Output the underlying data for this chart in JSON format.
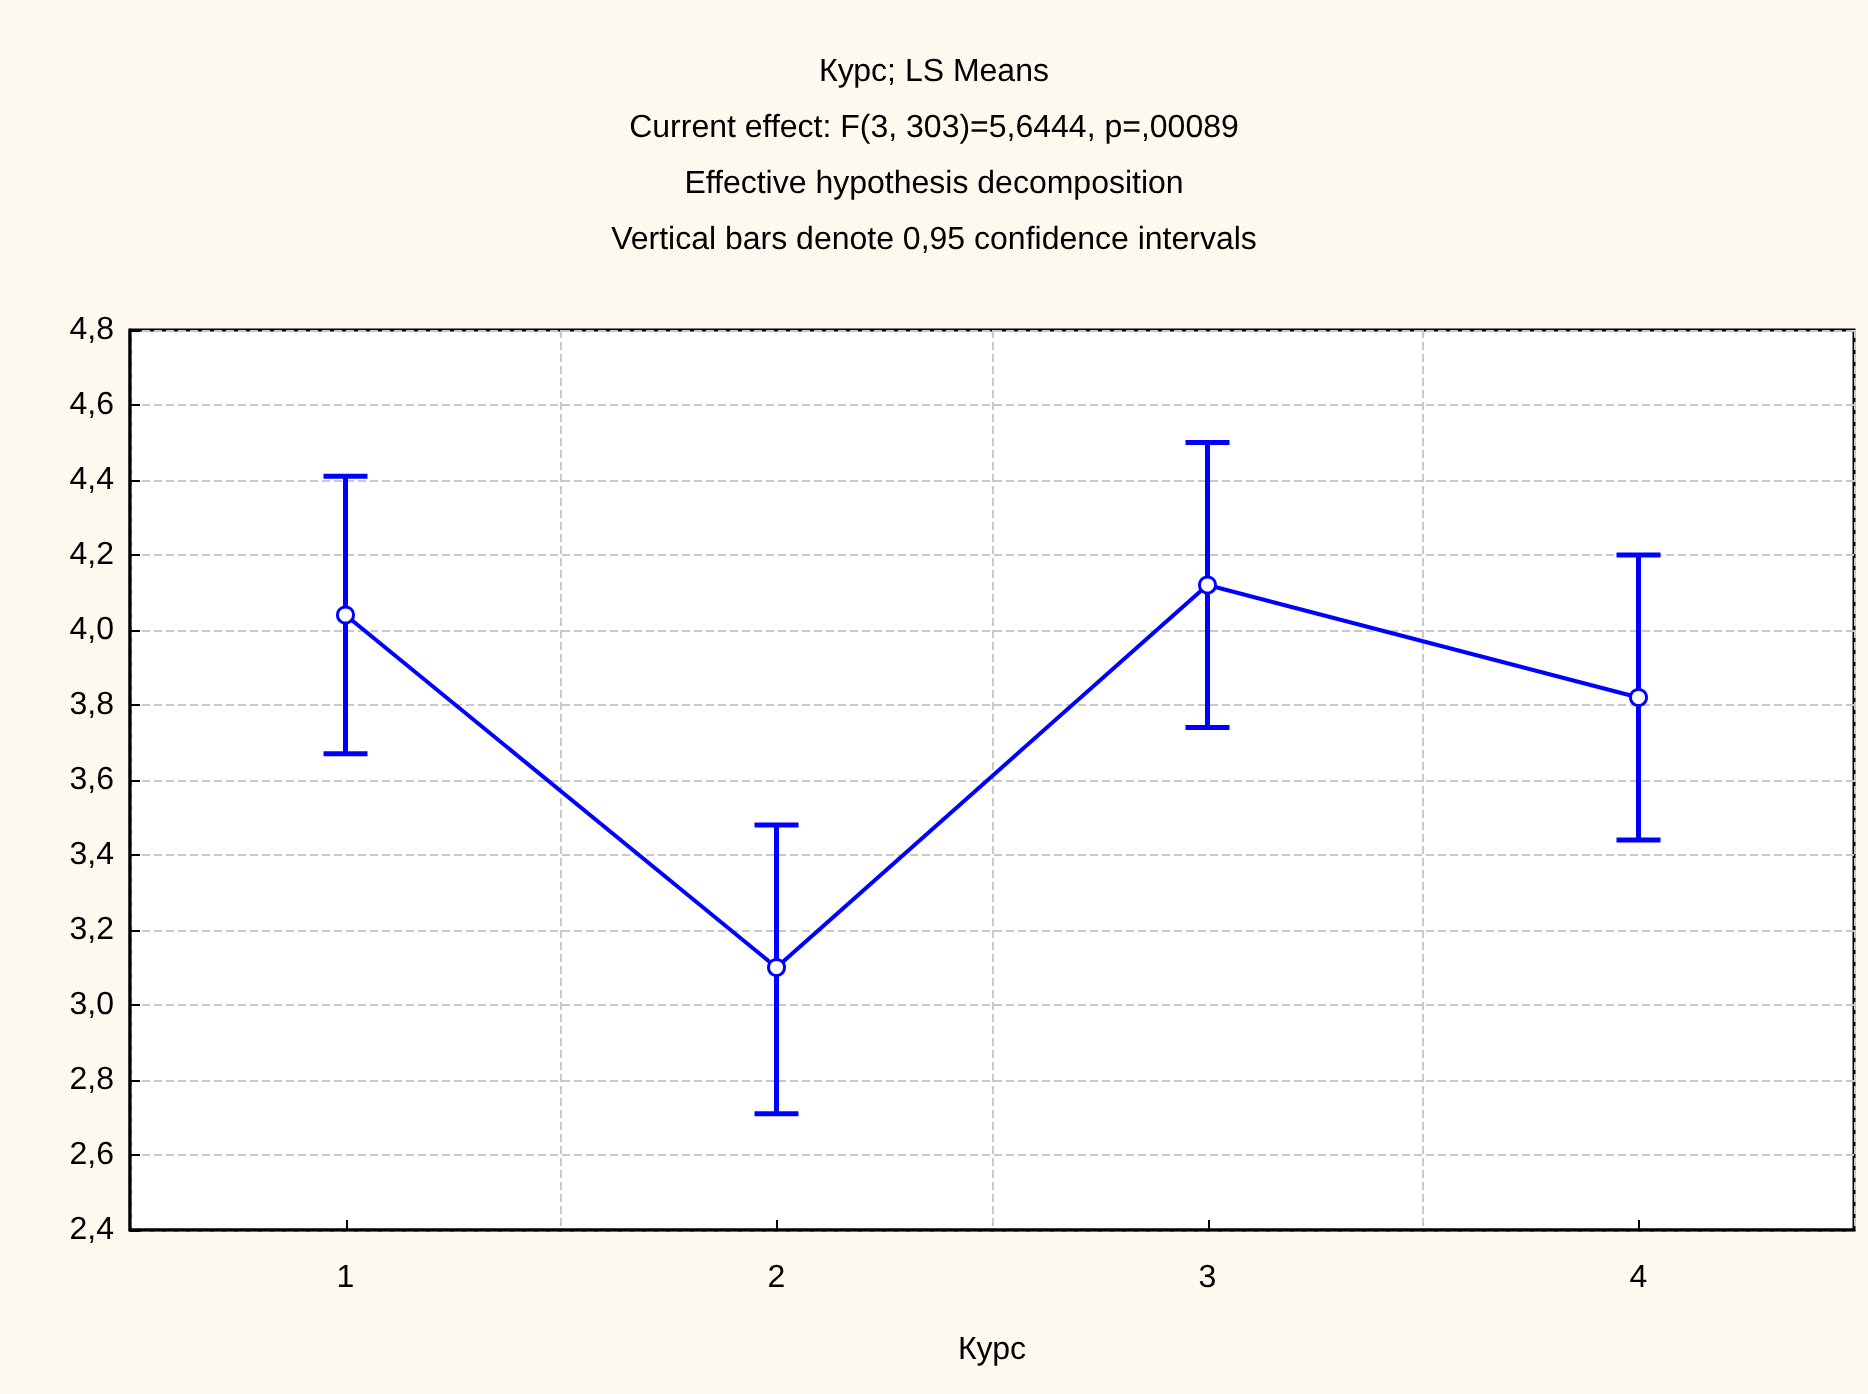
{
  "chart_data": {
    "type": "line",
    "title": "Курс; LS Means",
    "subtitle": "Current effect: F(3, 303)=5,6444, p=,00089",
    "annotations": [
      "Effective hypothesis decomposition",
      "Vertical bars denote 0,95 confidence intervals"
    ],
    "xlabel": "Курс",
    "categories": [
      "1",
      "2",
      "3",
      "4"
    ],
    "series": [
      {
        "color": "#0000ff",
        "values": [
          4.04,
          3.1,
          4.12,
          3.82
        ],
        "errors": [
          [
            3.67,
            4.41
          ],
          [
            2.71,
            3.48
          ],
          [
            3.74,
            4.5
          ],
          [
            3.44,
            4.2
          ]
        ]
      }
    ],
    "ylim": [
      2.4,
      4.8
    ],
    "yticks": [
      {
        "value": 2.4,
        "label": "2,4"
      },
      {
        "value": 2.6,
        "label": "2,6"
      },
      {
        "value": 2.8,
        "label": "2,8"
      },
      {
        "value": 3.0,
        "label": "3,0"
      },
      {
        "value": 3.2,
        "label": "3,2"
      },
      {
        "value": 3.4,
        "label": "3,4"
      },
      {
        "value": 3.6,
        "label": "3,6"
      },
      {
        "value": 3.8,
        "label": "3,8"
      },
      {
        "value": 4.0,
        "label": "4,0"
      },
      {
        "value": 4.2,
        "label": "4,2"
      },
      {
        "value": 4.4,
        "label": "4,4"
      },
      {
        "value": 4.6,
        "label": "4,6"
      },
      {
        "value": 4.8,
        "label": "4,8"
      }
    ],
    "grid": true,
    "marker": "circle",
    "line_style": "solid"
  }
}
